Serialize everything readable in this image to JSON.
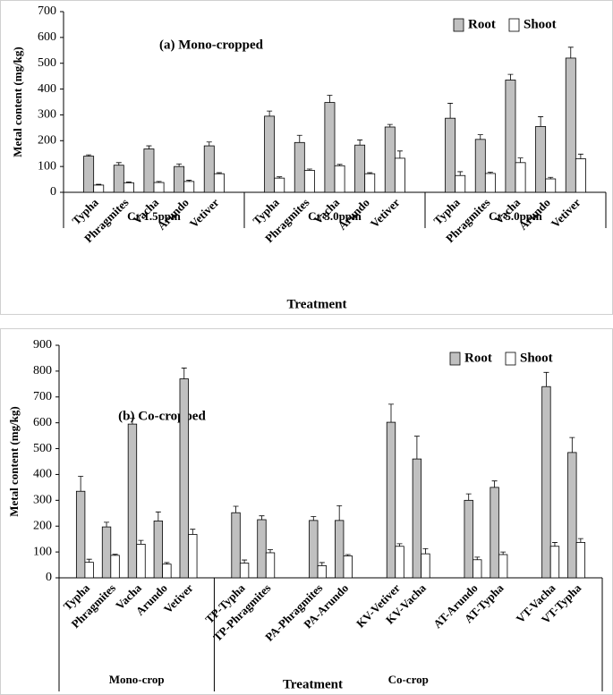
{
  "chart_data": [
    {
      "type": "bar",
      "title": "(a) Mono-cropped",
      "ylabel": "Metal content (mg/kg)",
      "xlabel": "Treatment",
      "ylim": [
        0,
        700
      ],
      "yticks": [
        0,
        100,
        200,
        300,
        400,
        500,
        600,
        700
      ],
      "legend": "upper right",
      "groups": [
        {
          "name": "Cr 1.5ppm",
          "categories": [
            "Typha",
            "Phragmites",
            "Vacha",
            "Arundo",
            "Vetiver"
          ]
        },
        {
          "name": "Cr 3.0ppm",
          "categories": [
            "Typha",
            "Phragmites",
            "Vacha",
            "Arundo",
            "Vetiver"
          ]
        },
        {
          "name": "Cr 5.0ppm",
          "categories": [
            "Typha",
            "Phragmites",
            "Vacha",
            "Arundo",
            "Vetiver"
          ]
        }
      ],
      "series": [
        {
          "name": "Root",
          "color": "#c0c0c0",
          "values": [
            140,
            105,
            168,
            100,
            180,
            295,
            193,
            348,
            183,
            253,
            287,
            205,
            435,
            255,
            520
          ],
          "errors": [
            5,
            10,
            12,
            10,
            15,
            20,
            28,
            28,
            20,
            10,
            58,
            18,
            22,
            38,
            42
          ]
        },
        {
          "name": "Shoot",
          "color": "#ffffff",
          "values": [
            28,
            37,
            38,
            42,
            72,
            55,
            85,
            103,
            72,
            132,
            65,
            73,
            115,
            52,
            130
          ],
          "errors": [
            3,
            3,
            4,
            5,
            4,
            5,
            5,
            5,
            4,
            28,
            15,
            5,
            18,
            6,
            18
          ]
        }
      ]
    },
    {
      "type": "bar",
      "title": "(b) Co-cropped",
      "ylabel": "Metal content (mg/kg)",
      "xlabel": "Treatment",
      "ylim": [
        0,
        900
      ],
      "yticks": [
        0,
        100,
        200,
        300,
        400,
        500,
        600,
        700,
        800,
        900
      ],
      "legend": "upper right",
      "groups": [
        {
          "name": "Mono-crop",
          "categories": [
            "Typha",
            "Phragmites",
            "Vacha",
            "Arundo",
            "Vetiver"
          ]
        },
        {
          "name": "Co-crop",
          "categories": [
            "TP-Typha",
            "TP-Phragmites",
            null,
            "PA-Phragmites",
            "PA-Arundo",
            null,
            "KV-Vetiver",
            "KV-Vacha",
            null,
            "AT-Arundo",
            "AT-Typha",
            null,
            "VT-Vacha",
            "VT-Typha"
          ]
        }
      ],
      "series": [
        {
          "name": "Root",
          "color": "#c0c0c0",
          "values": [
            335,
            197,
            595,
            220,
            770,
            252,
            225,
            null,
            222,
            222,
            null,
            602,
            460,
            null,
            300,
            350,
            null,
            740,
            485
          ],
          "errors": [
            58,
            18,
            22,
            35,
            42,
            25,
            15,
            null,
            15,
            57,
            null,
            70,
            88,
            null,
            25,
            25,
            null,
            55,
            58
          ]
        },
        {
          "name": "Shoot",
          "color": "#ffffff",
          "values": [
            60,
            87,
            130,
            53,
            168,
            57,
            97,
            null,
            47,
            85,
            null,
            122,
            93,
            null,
            70,
            90,
            null,
            122,
            137
          ],
          "errors": [
            12,
            4,
            15,
            6,
            20,
            12,
            12,
            null,
            12,
            5,
            null,
            10,
            20,
            null,
            10,
            10,
            null,
            15,
            15
          ]
        }
      ]
    }
  ]
}
